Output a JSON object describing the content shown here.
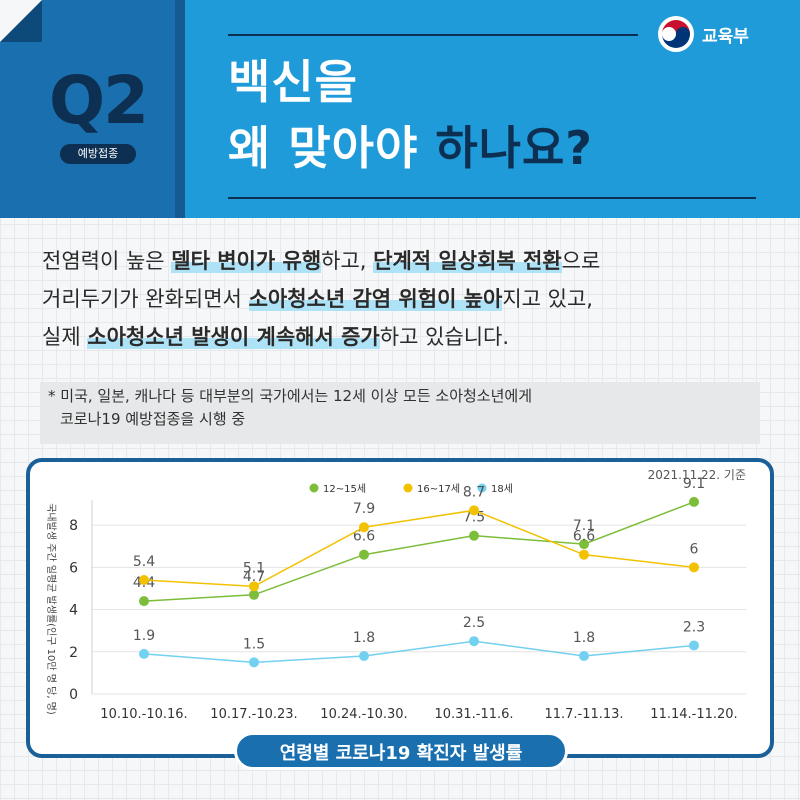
{
  "header": {
    "q_label": "Q2",
    "category_badge": "예방접종",
    "title_line1": "백신을",
    "title_line2_part1": "왜 맞아야 ",
    "title_line2_part2": "하나요?",
    "ministry_name": "교육부",
    "ministry_logo_icon": "taegeuk-emblem-icon"
  },
  "body": {
    "line1": [
      "전염력이 높은 ",
      "델타 변이가 유행",
      "하고, ",
      "단계적 일상회복 전환",
      "으로"
    ],
    "line2": [
      "거리두기가 완화되면서 ",
      "소아청소년 감염 위험이 높아",
      "지고 있고,"
    ],
    "line3": [
      "실제 ",
      "소아청소년 발생이 계속해서 증가",
      "하고 있습니다."
    ],
    "note_line1": "* 미국, 일본, 캐나다 등 대부분의 국가에서는 12세 이상 모든 소아청소년에게",
    "note_line2": "코로나19 예방접종을 시행 중"
  },
  "chart": {
    "date_note": "2021.11.22. 기준",
    "title": "연령별 코로나19 확진자 발생률"
  },
  "colors": {
    "header_blue": "#1f9bd9",
    "navy": "#0d2f52",
    "highlight": "#aee3f7",
    "series_12_15": "#7cbd3a",
    "series_16_17": "#f2c200",
    "series_18": "#72d0f0"
  },
  "chart_data": {
    "type": "line",
    "title": "연령별 코로나19 확진자 발생률",
    "ylabel": "국내발생 주간 일평균 발생률(인구 10만 명 당, 명)",
    "xlabel": "",
    "categories": [
      "10.10.-10.16.",
      "10.17.-10.23.",
      "10.24.-10.30.",
      "10.31.-11.6.",
      "11.7.-11.13.",
      "11.14.-11.20."
    ],
    "ylim": [
      0,
      9
    ],
    "yticks": [
      0,
      2,
      4,
      6,
      8
    ],
    "grid": "horizontal",
    "legend_position": "top-center",
    "series": [
      {
        "name": "12~15세",
        "color": "#7cbd3a",
        "values": [
          4.4,
          4.7,
          6.6,
          7.5,
          7.1,
          9.1
        ]
      },
      {
        "name": "16~17세",
        "color": "#f2c200",
        "values": [
          5.4,
          5.1,
          7.9,
          8.7,
          6.6,
          6
        ]
      },
      {
        "name": "18세",
        "color": "#72d0f0",
        "values": [
          1.9,
          1.5,
          1.8,
          2.5,
          1.8,
          2.3
        ]
      }
    ]
  }
}
